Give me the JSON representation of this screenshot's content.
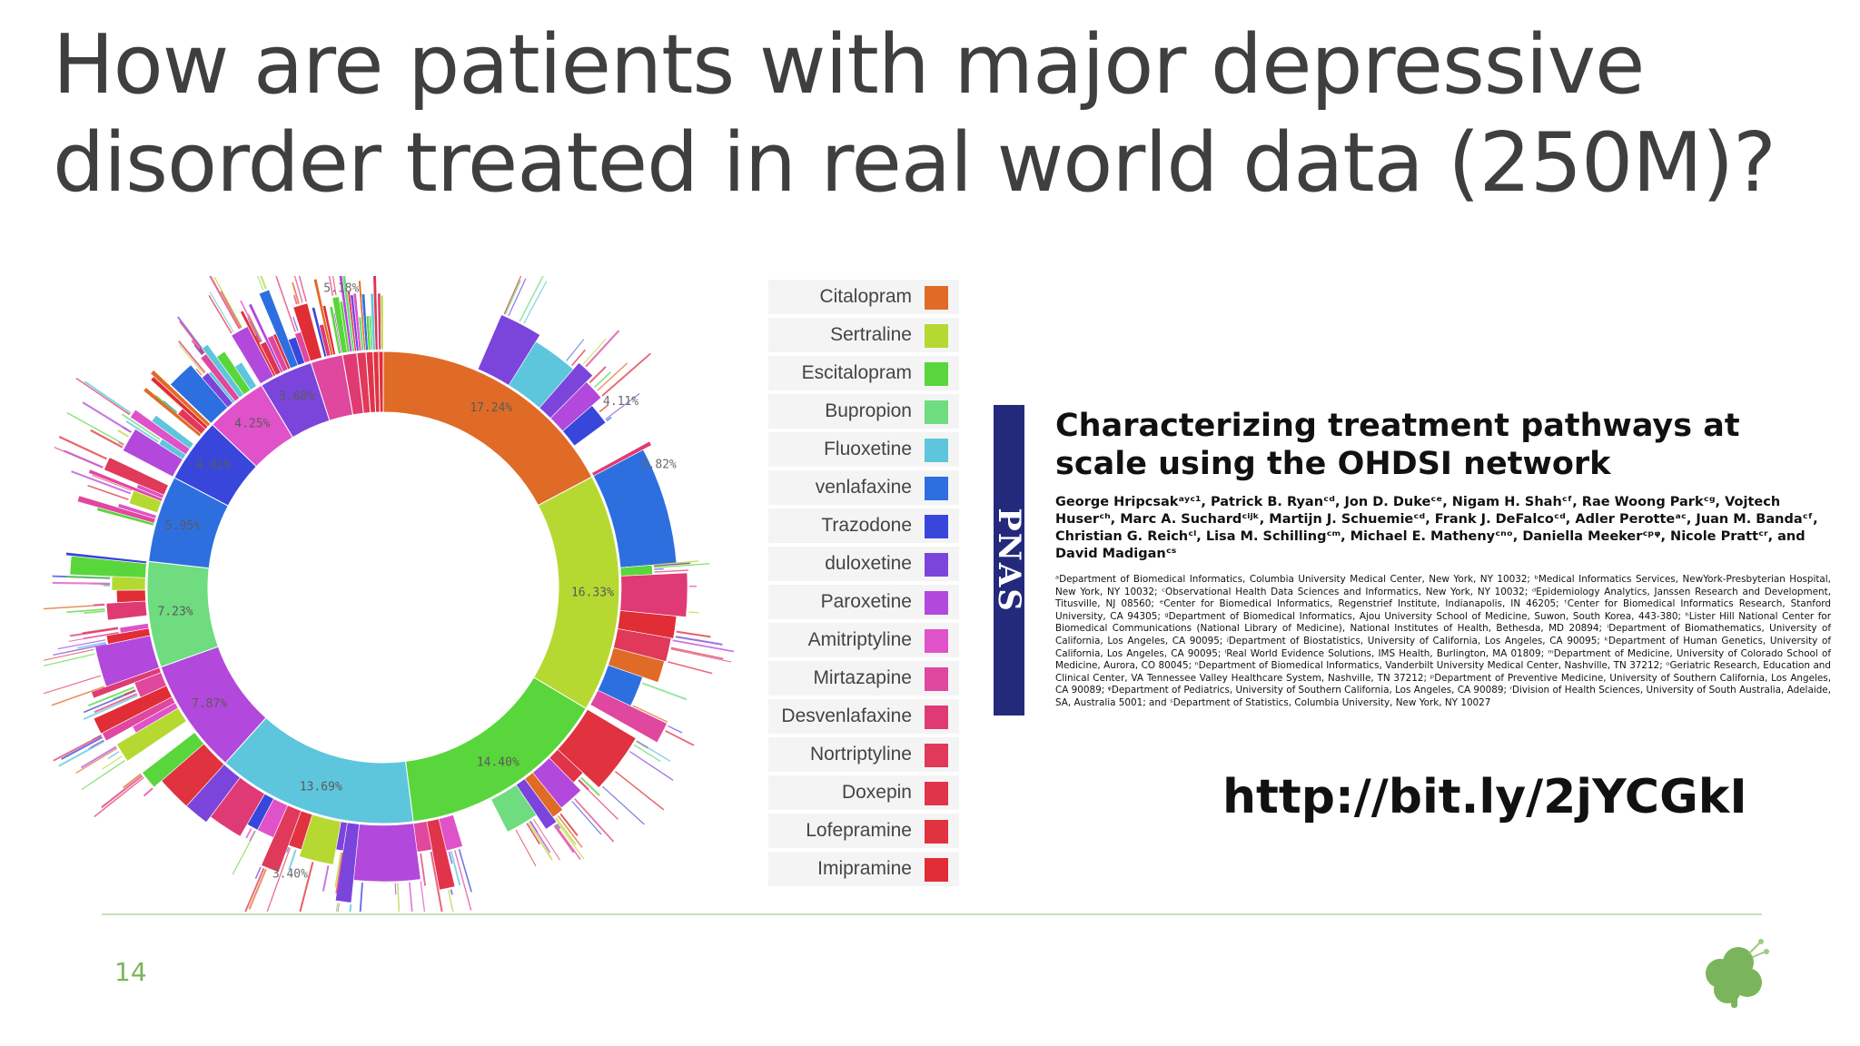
{
  "slide": {
    "title_line1": "How are patients with major depressive",
    "title_line2": "disorder treated in real world data (250M)?",
    "url": "http://bit.ly/2jYCGkI",
    "page_number": "14"
  },
  "legend": [
    {
      "label": "Citalopram",
      "color": "#e06b27"
    },
    {
      "label": "Sertraline",
      "color": "#b6d932"
    },
    {
      "label": "Escitalopram",
      "color": "#59d63b"
    },
    {
      "label": "Bupropion",
      "color": "#6edc7f"
    },
    {
      "label": "Fluoxetine",
      "color": "#5dc6dc"
    },
    {
      "label": "venlafaxine",
      "color": "#2e6fe0"
    },
    {
      "label": "Trazodone",
      "color": "#3846dc"
    },
    {
      "label": "duloxetine",
      "color": "#7b45dc"
    },
    {
      "label": "Paroxetine",
      "color": "#b348dc"
    },
    {
      "label": "Amitriptyline",
      "color": "#e052c9"
    },
    {
      "label": "Mirtazapine",
      "color": "#e0479e"
    },
    {
      "label": "Desvenlafaxine",
      "color": "#e03a74"
    },
    {
      "label": "Nortriptyline",
      "color": "#e0395a"
    },
    {
      "label": "Doxepin",
      "color": "#e0344b"
    },
    {
      "label": "Lofepramine",
      "color": "#e0323f"
    },
    {
      "label": "Imipramine",
      "color": "#e02d36"
    }
  ],
  "chart_data": {
    "type": "sunburst",
    "inner_ring": [
      {
        "drug": "Citalopram",
        "percent": 17.24,
        "label": "17.24%"
      },
      {
        "drug": "Sertraline",
        "percent": 16.33,
        "label": "16.33%"
      },
      {
        "drug": "Escitalopram",
        "percent": 14.4,
        "label": "14.40%"
      },
      {
        "drug": "Fluoxetine",
        "percent": 13.69,
        "label": "13.69%"
      },
      {
        "drug": "Paroxetine",
        "percent": 7.87,
        "label": "7.87%"
      },
      {
        "drug": "Bupropion",
        "percent": 7.23,
        "label": "7.23%"
      },
      {
        "drug": "venlafaxine",
        "percent": 5.95,
        "label": "5.95%"
      },
      {
        "drug": "Trazodone",
        "percent": 4.41,
        "label": "4.41%"
      },
      {
        "drug": "Amitriptyline",
        "percent": 4.25,
        "label": "4.25%"
      },
      {
        "drug": "duloxetine",
        "percent": 3.68,
        "label": "3.68%"
      },
      {
        "drug": "Mirtazapine",
        "percent": 2.18,
        "label": ""
      },
      {
        "drug": "Desvenlafaxine",
        "percent": 0.98,
        "label": ""
      },
      {
        "drug": "Nortriptyline",
        "percent": 0.62,
        "label": ""
      },
      {
        "drug": "Doxepin",
        "percent": 0.48,
        "label": ""
      },
      {
        "drug": "Lofepramine",
        "percent": 0.38,
        "label": ""
      },
      {
        "drug": "Imipramine",
        "percent": 0.31,
        "label": ""
      }
    ],
    "outer_labels": [
      {
        "label": "5.18%",
        "angle_deg": 352
      },
      {
        "label": "4.11%",
        "angle_deg": 52
      },
      {
        "label": "3.82%",
        "angle_deg": 66
      },
      {
        "label": "3.40%",
        "angle_deg": 198
      }
    ]
  },
  "paper": {
    "title": "Characterizing treatment pathways at scale using the OHDSI network",
    "authors": "George Hripcsakᵃʸᶜ¹, Patrick B. Ryanᶜᵈ, Jon D. Dukeᶜᵉ, Nigam H. Shahᶜᶠ, Rae Woong Parkᶜᵍ, Vojtech Huserᶜʰ, Marc A. Suchardᶜⁱʲᵏ, Martijn J. Schuemieᶜᵈ, Frank J. DeFalcoᶜᵈ, Adler Perotteᵃᶜ, Juan M. Bandaᶜᶠ, Christian G. Reichᶜˡ, Lisa M. Schillingᶜᵐ, Michael E. Mathenyᶜⁿᵒ, Daniella Meekerᶜᵖᵠ, Nicole Prattᶜʳ, and David Madiganᶜˢ",
    "affiliations": "ᵃDepartment of Biomedical Informatics, Columbia University Medical Center, New York, NY 10032; ᵇMedical Informatics Services, NewYork-Presbyterian Hospital, New York, NY 10032; ᶜObservational Health Data Sciences and Informatics, New York, NY 10032; ᵈEpidemiology Analytics, Janssen Research and Development, Titusville, NJ 08560; ᵉCenter for Biomedical Informatics, Regenstrief Institute, Indianapolis, IN 46205; ᶠCenter for Biomedical Informatics Research, Stanford University, CA 94305; ᵍDepartment of Biomedical Informatics, Ajou University School of Medicine, Suwon, South Korea, 443-380; ʰLister Hill National Center for Biomedical Communications (National Library of Medicine), National Institutes of Health, Bethesda, MD 20894; ⁱDepartment of Biomathematics, University of California, Los Angeles, CA 90095; ʲDepartment of Biostatistics, University of California, Los Angeles, CA 90095; ᵏDepartment of Human Genetics, University of California, Los Angeles, CA 90095; ˡReal World Evidence Solutions, IMS Health, Burlington, MA 01809; ᵐDepartment of Medicine, University of Colorado School of Medicine, Aurora, CO 80045; ⁿDepartment of Biomedical Informatics, Vanderbilt University Medical Center, Nashville, TN 37212; ᵒGeriatric Research, Education and Clinical Center, VA Tennessee Valley Healthcare System, Nashville, TN 37212; ᵖDepartment of Preventive Medicine, University of Southern California, Los Angeles, CA 90089; ᵠDepartment of Pediatrics, University of Southern California, Los Angeles, CA 90089; ʳDivision of Health Sciences, University of South Australia, Adelaide, SA, Australia 5001; and ˢDepartment of Statistics, Columbia University, New York, NY 10027",
    "journal_mark": "PNAS"
  },
  "logo": {
    "name": "ohdsi-logo",
    "color": "#7ab55c"
  }
}
